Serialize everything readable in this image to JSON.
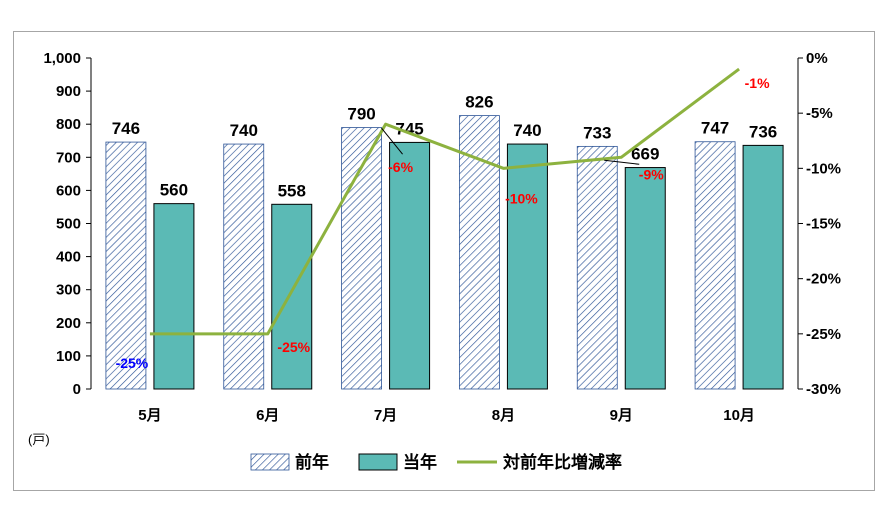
{
  "chart_data": {
    "type": "bar",
    "categories": [
      "5月",
      "6月",
      "7月",
      "8月",
      "9月",
      "10月"
    ],
    "series": [
      {
        "name": "前年",
        "type": "bar",
        "axis": "left",
        "pattern": "hatched",
        "color": "#2e5597",
        "values": [
          746,
          740,
          790,
          826,
          733,
          747
        ]
      },
      {
        "name": "当年",
        "type": "bar",
        "axis": "left",
        "pattern": "solid",
        "color": "#5bbab5",
        "values": [
          560,
          558,
          745,
          740,
          669,
          736
        ]
      },
      {
        "name": "対前年比増減率",
        "type": "line",
        "axis": "right",
        "color": "#8db23f",
        "values": [
          -0.25,
          -0.25,
          -0.06,
          -0.1,
          -0.09,
          -0.01
        ]
      }
    ],
    "bar_labels": [
      [
        "746",
        "740",
        "790",
        "826",
        "733",
        "747"
      ],
      [
        "560",
        "558",
        "745",
        "740",
        "669",
        "736"
      ]
    ],
    "rate_labels": [
      "-25%",
      "-25%",
      "-6%",
      "-10%",
      "-9%",
      "-1%"
    ],
    "rate_label_colors": [
      "#0000ff",
      "#ff0000",
      "#ff0000",
      "#ff0000",
      "#ff0000",
      "#ff0000"
    ],
    "y_left": {
      "min": 0,
      "max": 1000,
      "step": 100,
      "unit": "(戸)",
      "tick_labels": [
        "0",
        "100",
        "200",
        "300",
        "400",
        "500",
        "600",
        "700",
        "800",
        "900",
        "1,000"
      ]
    },
    "y_right": {
      "min": -0.3,
      "max": 0,
      "step": 0.05,
      "tick_labels": [
        "-30%",
        "-25%",
        "-20%",
        "-15%",
        "-10%",
        "-5%",
        "0%"
      ]
    },
    "legend": {
      "position": "bottom",
      "entries": [
        "前年",
        "当年",
        "対前年比増減率"
      ]
    },
    "grid": false
  }
}
